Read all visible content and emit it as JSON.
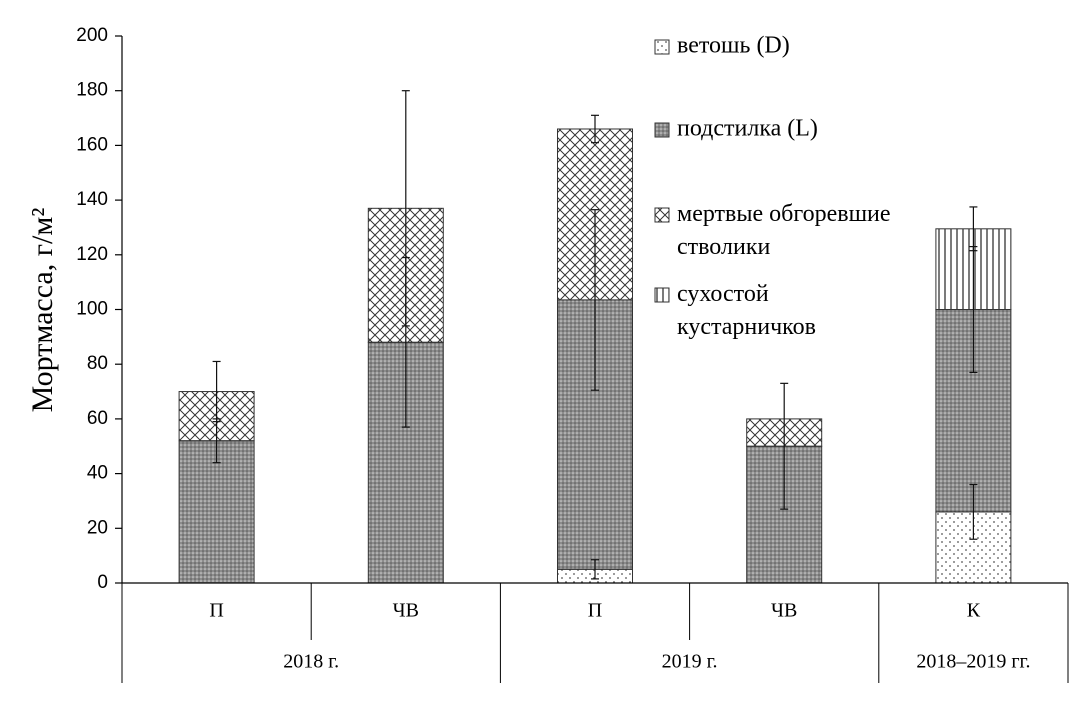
{
  "chart_data": {
    "type": "bar",
    "stacked": true,
    "y_label": "Мортмасса, г/м²",
    "categories": [
      "П",
      "ЧВ",
      "П",
      "ЧВ",
      "К"
    ],
    "groups": [
      {
        "label": "2018 г.",
        "count": 2
      },
      {
        "label": "2019 г.",
        "count": 2
      },
      {
        "label": "2018–2019 гг.",
        "count": 1
      }
    ],
    "series": [
      {
        "name": "ветошь (D)",
        "color": "#ffffff",
        "values": [
          0,
          0,
          5,
          0,
          26
        ],
        "errors": [
          null,
          null,
          3.5,
          null,
          10
        ]
      },
      {
        "name": "подстилка (L)",
        "color": "#8c8c8c",
        "values": [
          52,
          88,
          98.5,
          50,
          74
        ],
        "errors": [
          8,
          31,
          33,
          23,
          23
        ]
      },
      {
        "name": "мертвые обгоревшие\nстволики",
        "color": "#ffffff",
        "values": [
          18,
          49,
          62.5,
          10,
          0
        ],
        "errors": [
          11,
          43,
          5,
          null,
          null
        ]
      },
      {
        "name": "сухостой\nкустарничков",
        "color": "#ffffff",
        "values": [
          0,
          0,
          0,
          0,
          29.5
        ],
        "errors": [
          null,
          null,
          null,
          null,
          8
        ]
      }
    ],
    "ylim": [
      0,
      200
    ],
    "yticks": [
      0,
      20,
      40,
      60,
      80,
      100,
      120,
      140,
      160,
      180,
      200
    ],
    "legend": "upper right"
  }
}
